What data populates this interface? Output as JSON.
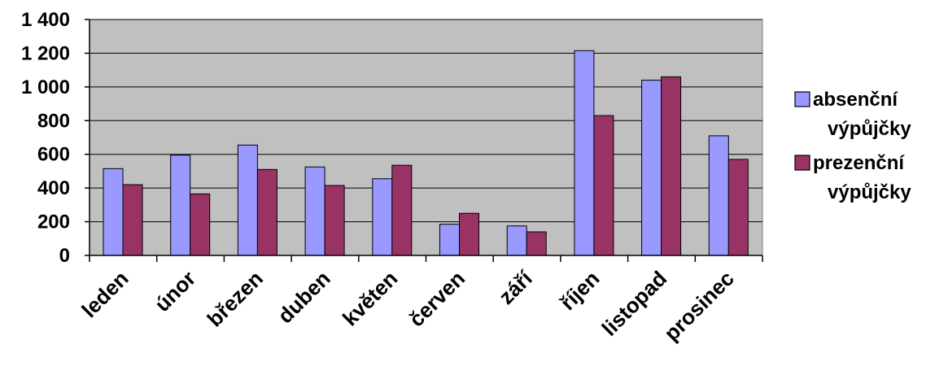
{
  "chart_data": {
    "type": "bar",
    "categories": [
      "leden",
      "únor",
      "březen",
      "duben",
      "květen",
      "červen",
      "září",
      "říjen",
      "listopad",
      "prosinec"
    ],
    "series": [
      {
        "name_lines": [
          "absenční",
          "výpůjčky"
        ],
        "color": "#9999ff",
        "values": [
          515,
          595,
          655,
          525,
          455,
          185,
          175,
          1215,
          1040,
          710
        ]
      },
      {
        "name_lines": [
          "prezenční",
          "výpůjčky"
        ],
        "color": "#993366",
        "values": [
          420,
          365,
          510,
          415,
          535,
          250,
          140,
          830,
          1060,
          570
        ]
      }
    ],
    "y_ticks": [
      "0",
      "200",
      "400",
      "600",
      "800",
      "1 000",
      "1 200",
      "1 400"
    ],
    "ylim": [
      0,
      1400
    ],
    "grid": true,
    "plot_background": "#c0c0c0",
    "legend_position": "right"
  }
}
